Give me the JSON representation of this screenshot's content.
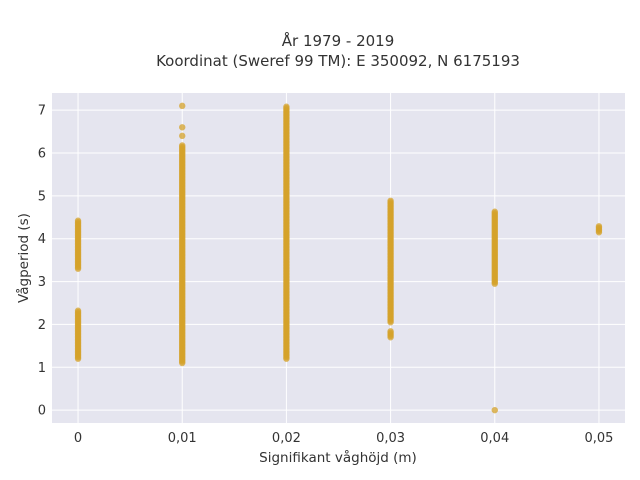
{
  "chart_data": {
    "type": "scatter",
    "title_line1": "År 1979 - 2019",
    "title_line2": "Koordinat (Sweref 99 TM): E 350092, N 6175193",
    "xlabel": "Signifikant våghöjd (m)",
    "ylabel": "Vågperiod (s)",
    "xlim": [
      -0.0025,
      0.0525
    ],
    "ylim": [
      -0.3,
      7.4
    ],
    "x_ticks": [
      0,
      0.01,
      0.02,
      0.03,
      0.04,
      0.05
    ],
    "x_tick_labels": [
      "0",
      "0,01",
      "0,02",
      "0,03",
      "0,04",
      "0,05"
    ],
    "y_ticks": [
      0,
      1,
      2,
      3,
      4,
      5,
      6,
      7
    ],
    "y_tick_labels": [
      "0",
      "1",
      "2",
      "3",
      "4",
      "5",
      "6",
      "7"
    ],
    "grid": true,
    "background": "#E5E5EF",
    "marker_color": "#D4A22A",
    "series": [
      {
        "points": [
          {
            "x": 0,
            "y_range": [
              3.3,
              4.45
            ]
          },
          {
            "x": 0,
            "y_range": [
              1.2,
              2.35
            ]
          },
          {
            "x": 0.01,
            "y_range": [
              1.1,
              6.2
            ]
          },
          {
            "x": 0.01,
            "y": 6.4
          },
          {
            "x": 0.01,
            "y": 6.6
          },
          {
            "x": 0.01,
            "y": 7.1
          },
          {
            "x": 0.02,
            "y_range": [
              1.2,
              7.1
            ]
          },
          {
            "x": 0.03,
            "y_range": [
              2.05,
              4.9
            ]
          },
          {
            "x": 0.03,
            "y_range": [
              1.7,
              1.85
            ]
          },
          {
            "x": 0.04,
            "y_range": [
              2.95,
              4.65
            ]
          },
          {
            "x": 0.04,
            "y": 0
          },
          {
            "x": 0.05,
            "y_range": [
              4.15,
              4.3
            ]
          }
        ]
      }
    ]
  }
}
